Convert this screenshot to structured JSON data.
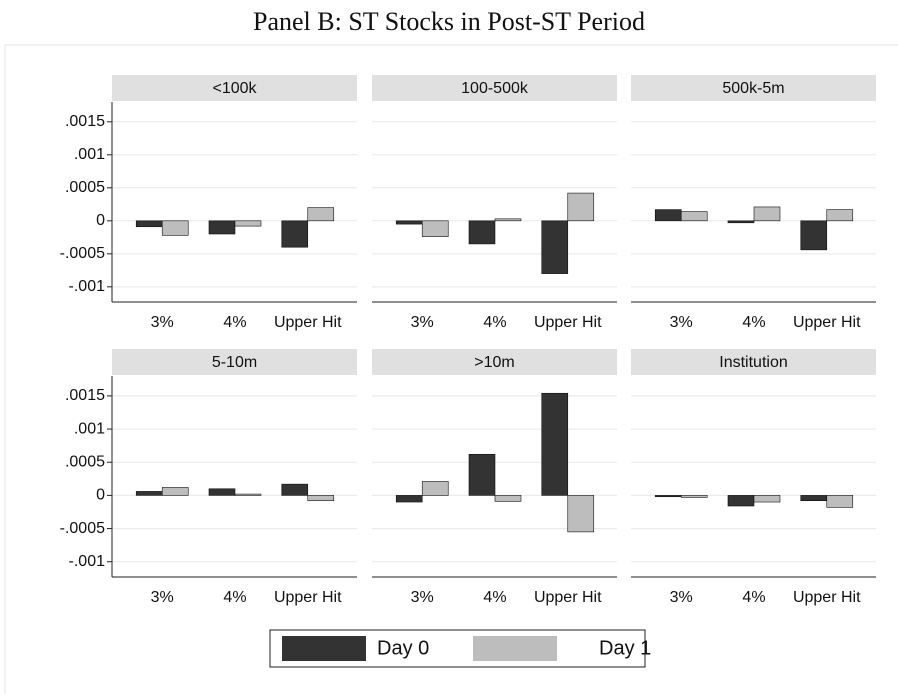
{
  "title": "Panel B: ST Stocks in Post-ST Period",
  "chart_data": [
    {
      "type": "bar",
      "title": "<100k",
      "categories": [
        "3%",
        "4%",
        "Upper Hit"
      ],
      "series": [
        {
          "name": "Day 0",
          "color": "#333333",
          "values": [
            -9e-05,
            -0.0002,
            -0.0004
          ]
        },
        {
          "name": "Day 1",
          "color": "#bdbdbd",
          "values": [
            -0.00022,
            -8e-05,
            0.0002
          ]
        }
      ],
      "ylim": [
        -0.00123,
        0.0018
      ],
      "yticks": [
        {
          "value": -0.001,
          "label": "-.001"
        },
        {
          "value": -0.0005,
          "label": "-.0005"
        },
        0,
        {
          "value": 0.0005,
          "label": ".0005"
        },
        {
          "value": 0.001,
          "label": ".001"
        },
        {
          "value": 0.0015,
          "label": ".0015"
        }
      ],
      "grid": true
    },
    {
      "type": "bar",
      "title": "100-500k",
      "categories": [
        "3%",
        "4%",
        "Upper Hit"
      ],
      "series": [
        {
          "name": "Day 0",
          "color": "#333333",
          "values": [
            -5e-05,
            -0.00035,
            -0.0008
          ]
        },
        {
          "name": "Day 1",
          "color": "#bdbdbd",
          "values": [
            -0.00024,
            3e-05,
            0.00042
          ]
        }
      ],
      "ylim": [
        -0.00123,
        0.0018
      ],
      "yticks": [
        {
          "value": -0.001,
          "label": "-.001"
        },
        {
          "value": -0.0005,
          "label": "-.0005"
        },
        0,
        {
          "value": 0.0005,
          "label": ".0005"
        },
        {
          "value": 0.001,
          "label": ".001"
        },
        {
          "value": 0.0015,
          "label": ".0015"
        }
      ],
      "grid": true
    },
    {
      "type": "bar",
      "title": "500k-5m",
      "categories": [
        "3%",
        "4%",
        "Upper Hit"
      ],
      "series": [
        {
          "name": "Day 0",
          "color": "#333333",
          "values": [
            0.00017,
            -3e-05,
            -0.00044
          ]
        },
        {
          "name": "Day 1",
          "color": "#bdbdbd",
          "values": [
            0.00014,
            0.00021,
            0.00017
          ]
        }
      ],
      "ylim": [
        -0.00123,
        0.0018
      ],
      "yticks": [
        {
          "value": -0.001,
          "label": "-.001"
        },
        {
          "value": -0.0005,
          "label": "-.0005"
        },
        0,
        {
          "value": 0.0005,
          "label": ".0005"
        },
        {
          "value": 0.001,
          "label": ".001"
        },
        {
          "value": 0.0015,
          "label": ".0015"
        }
      ],
      "grid": true
    },
    {
      "type": "bar",
      "title": "5-10m",
      "categories": [
        "3%",
        "4%",
        "Upper Hit"
      ],
      "series": [
        {
          "name": "Day 0",
          "color": "#333333",
          "values": [
            6e-05,
            0.0001,
            0.00017
          ]
        },
        {
          "name": "Day 1",
          "color": "#bdbdbd",
          "values": [
            0.00012,
            2e-05,
            -8e-05
          ]
        }
      ],
      "ylim": [
        -0.00123,
        0.0018
      ],
      "yticks": [
        {
          "value": -0.001,
          "label": "-.001"
        },
        {
          "value": -0.0005,
          "label": "-.0005"
        },
        0,
        {
          "value": 0.0005,
          "label": ".0005"
        },
        {
          "value": 0.001,
          "label": ".001"
        },
        {
          "value": 0.0015,
          "label": ".0015"
        }
      ],
      "grid": true
    },
    {
      "type": "bar",
      "title": ">10m",
      "categories": [
        "3%",
        "4%",
        "Upper Hit"
      ],
      "series": [
        {
          "name": "Day 0",
          "color": "#333333",
          "values": [
            -0.0001,
            0.00062,
            0.00154
          ]
        },
        {
          "name": "Day 1",
          "color": "#bdbdbd",
          "values": [
            0.00021,
            -9e-05,
            -0.00055
          ]
        }
      ],
      "ylim": [
        -0.00123,
        0.0018
      ],
      "yticks": [
        {
          "value": -0.001,
          "label": "-.001"
        },
        {
          "value": -0.0005,
          "label": "-.0005"
        },
        0,
        {
          "value": 0.0005,
          "label": ".0005"
        },
        {
          "value": 0.001,
          "label": ".001"
        },
        {
          "value": 0.0015,
          "label": ".0015"
        }
      ],
      "grid": true
    },
    {
      "type": "bar",
      "title": "Institution",
      "categories": [
        "3%",
        "4%",
        "Upper Hit"
      ],
      "series": [
        {
          "name": "Day 0",
          "color": "#333333",
          "values": [
            -2e-05,
            -0.00016,
            -8e-05
          ]
        },
        {
          "name": "Day 1",
          "color": "#bdbdbd",
          "values": [
            -3e-05,
            -0.0001,
            -0.00018
          ]
        }
      ],
      "ylim": [
        -0.00123,
        0.0018
      ],
      "yticks": [
        {
          "value": -0.001,
          "label": "-.001"
        },
        {
          "value": -0.0005,
          "label": "-.0005"
        },
        0,
        {
          "value": 0.0005,
          "label": ".0005"
        },
        {
          "value": 0.001,
          "label": ".001"
        },
        {
          "value": 0.0015,
          "label": ".0015"
        }
      ],
      "grid": true
    }
  ]
}
